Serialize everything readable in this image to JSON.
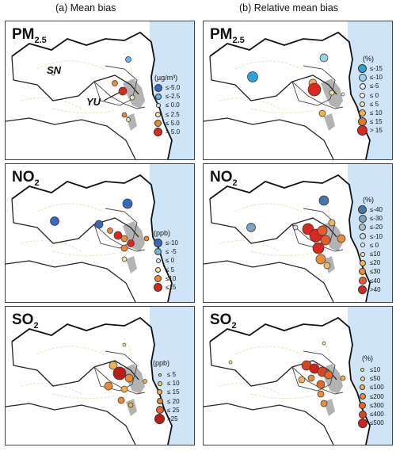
{
  "columns": {
    "a": "(a) Mean bias",
    "b": "(b) Relative mean bias"
  },
  "panels": {
    "a1": {
      "title": "PM",
      "sub": "2.5",
      "unit": "(µg/m³)",
      "legend": [
        "≤-5.0",
        "≤-2.5",
        "≤ 0.0",
        "≤ 2.5",
        "≤ 5.0",
        "> 5.0"
      ]
    },
    "b1": {
      "title": "PM",
      "sub": "2.5",
      "unit": "(%)",
      "legend": [
        "≤-15",
        "≤-10",
        "≤-5",
        "≤ 0",
        "≤ 5",
        "≤ 10",
        "≤ 15",
        "> 15"
      ]
    },
    "a2": {
      "title": "NO",
      "sub": "2",
      "unit": "(ppb)",
      "legend": [
        "≤-10",
        "≤ -5",
        "≤ 0",
        "≤ 5",
        "≤10",
        "≤15"
      ]
    },
    "b2": {
      "title": "NO",
      "sub": "2",
      "unit": "(%)",
      "legend": [
        "≤-40",
        "≤-30",
        "≤-20",
        "≤-10",
        "≤ 0",
        "≤10",
        "≤20",
        "≤30",
        "≤40",
        ">40"
      ]
    },
    "a3": {
      "title": "SO",
      "sub": "2",
      "unit": "(ppb)",
      "legend": [
        "≤ 5",
        "≤ 10",
        "≤ 15",
        "≤ 20",
        "≤ 25",
        ">25"
      ]
    },
    "b3": {
      "title": "SO",
      "sub": "2",
      "unit": "(%)",
      "legend": [
        "≤10",
        "≤50",
        "≤100",
        "≤200",
        "≤300",
        "≤400",
        "≤500"
      ]
    }
  },
  "labels": {
    "sn": "SN",
    "yu": "YU"
  },
  "colors": {
    "sea": "#cfe5f7",
    "urban": "#b3b3b3",
    "scale_bias": [
      "#3a68b8",
      "#6cb6e3",
      "#e2eff7",
      "#f2e7a9",
      "#ea8a35",
      "#d62a20"
    ],
    "scale_rel_pm": [
      "#2f9fd6",
      "#9fcfeb",
      "#e6f0f6",
      "#f6f6f6",
      "#f6e4a2",
      "#f0b053",
      "#e8732d",
      "#d8281f"
    ],
    "scale_rel_no2": [
      "#4478a8",
      "#7aa3bf",
      "#a7c2d3",
      "#cfdde6",
      "#f4f4f4",
      "#f7eca6",
      "#f2b95a",
      "#ec8b3a",
      "#e25d2a",
      "#d8281f"
    ],
    "scale_rel_so2": [
      "#f3ee9a",
      "#f4d778",
      "#f0b450",
      "#ea8d37",
      "#e3692b",
      "#d94523",
      "#d2221e"
    ]
  }
}
